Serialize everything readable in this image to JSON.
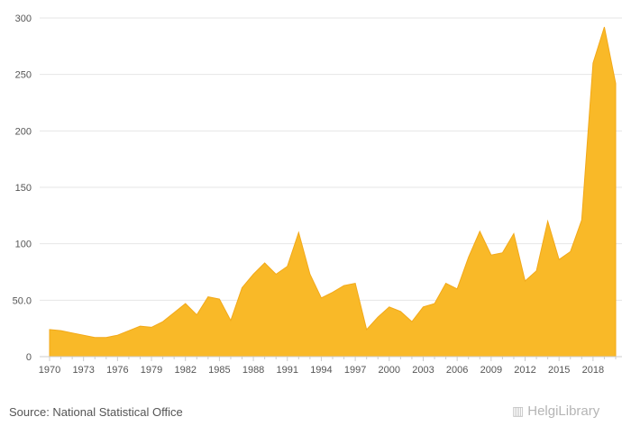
{
  "source": "Source: National Statistical Office",
  "brand": "HelgiLibrary",
  "brand_icon": "helgilibrary-logo-icon",
  "colors": {
    "area": "#f9b928",
    "area_stroke": "#f2a91a",
    "grid": "#e6e6e6",
    "axis": "#cccccc",
    "text": "#555555"
  },
  "chart_data": {
    "type": "area",
    "title": "",
    "xlabel": "",
    "ylabel": "",
    "ylim": [
      0,
      300
    ],
    "yticks": [
      "0",
      "50.0",
      "100",
      "150",
      "200",
      "250",
      "300"
    ],
    "xticks": [
      "1970",
      "1973",
      "1976",
      "1979",
      "1982",
      "1985",
      "1988",
      "1991",
      "1994",
      "1997",
      "2000",
      "2003",
      "2006",
      "2009",
      "2012",
      "2015",
      "2018"
    ],
    "grid": true,
    "legend": "none",
    "x": [
      1970,
      1971,
      1972,
      1973,
      1974,
      1975,
      1976,
      1977,
      1978,
      1979,
      1980,
      1981,
      1982,
      1983,
      1984,
      1985,
      1986,
      1987,
      1988,
      1989,
      1990,
      1991,
      1992,
      1993,
      1994,
      1995,
      1996,
      1997,
      1998,
      1999,
      2000,
      2001,
      2002,
      2003,
      2004,
      2005,
      2006,
      2007,
      2008,
      2009,
      2010,
      2011,
      2012,
      2013,
      2014,
      2015,
      2016,
      2017,
      2018,
      2019,
      2020
    ],
    "values": [
      24,
      23,
      21,
      19,
      17,
      17,
      19,
      23,
      27,
      26,
      31,
      39,
      47,
      37,
      53,
      51,
      32,
      61,
      73,
      83,
      73,
      80,
      110,
      73,
      52,
      57,
      63,
      65,
      24,
      35,
      44,
      40,
      31,
      44,
      47,
      65,
      60,
      88,
      111,
      90,
      92,
      109,
      67,
      76,
      120,
      86,
      93,
      121,
      260,
      292,
      242
    ]
  }
}
